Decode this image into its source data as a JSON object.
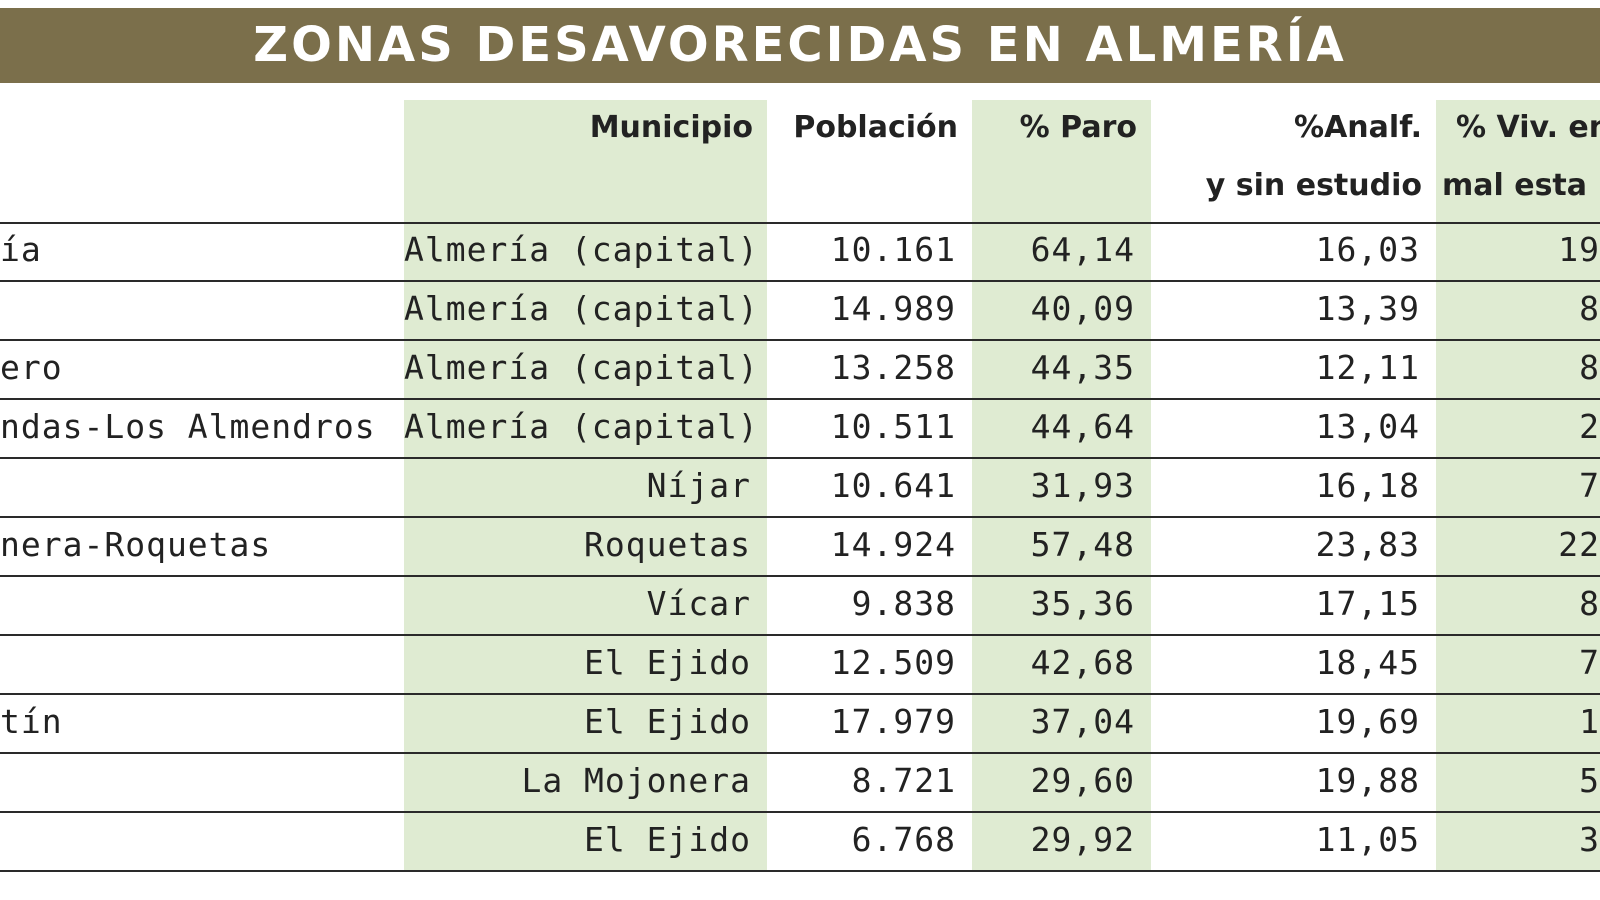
{
  "colors": {
    "title_bar": "#7b6f4b",
    "title_text": "#ffffff",
    "shade": "#dfebd2",
    "rule": "#2a2a2a",
    "text": "#222222"
  },
  "chart_data": {
    "type": "table",
    "title": "ZONAS DESAVORECIDAS EN ALMERÍA",
    "columns": [
      {
        "key": "zona",
        "label_lines": [
          "",
          ""
        ]
      },
      {
        "key": "municipio",
        "label_lines": [
          "Municipio",
          ""
        ]
      },
      {
        "key": "poblacion",
        "label_lines": [
          "Población",
          ""
        ]
      },
      {
        "key": "paro",
        "label_lines": [
          "% Paro",
          ""
        ]
      },
      {
        "key": "analf",
        "label_lines": [
          "%Analf.",
          "y sin estudio"
        ]
      },
      {
        "key": "viv",
        "label_lines": [
          "% Viv. en",
          "mal esta"
        ]
      }
    ],
    "rows": [
      {
        "zona": "ía",
        "municipio": "Almería (capital)",
        "poblacion": "10.161",
        "paro": "64,14",
        "analf": "16,03",
        "viv": "19"
      },
      {
        "zona": "",
        "municipio": "Almería (capital)",
        "poblacion": "14.989",
        "paro": "40,09",
        "analf": "13,39",
        "viv": "8"
      },
      {
        "zona": "ero",
        "municipio": "Almería (capital)",
        "poblacion": "13.258",
        "paro": "44,35",
        "analf": "12,11",
        "viv": "8"
      },
      {
        "zona": "ndas-Los Almendros",
        "municipio": "Almería (capital)",
        "poblacion": "10.511",
        "paro": "44,64",
        "analf": "13,04",
        "viv": "2"
      },
      {
        "zona": "",
        "municipio": "Níjar",
        "poblacion": "10.641",
        "paro": "31,93",
        "analf": "16,18",
        "viv": "7"
      },
      {
        "zona": "nera-Roquetas",
        "municipio": "Roquetas",
        "poblacion": "14.924",
        "paro": "57,48",
        "analf": "23,83",
        "viv": "22"
      },
      {
        "zona": "",
        "municipio": "Vícar",
        "poblacion": "9.838",
        "paro": "35,36",
        "analf": "17,15",
        "viv": "8"
      },
      {
        "zona": "",
        "municipio": "El Ejido",
        "poblacion": "12.509",
        "paro": "42,68",
        "analf": "18,45",
        "viv": "7"
      },
      {
        "zona": "tín",
        "municipio": "El Ejido",
        "poblacion": "17.979",
        "paro": "37,04",
        "analf": "19,69",
        "viv": "1"
      },
      {
        "zona": "",
        "municipio": "La Mojonera",
        "poblacion": "8.721",
        "paro": "29,60",
        "analf": "19,88",
        "viv": "5"
      },
      {
        "zona": "",
        "municipio": "El Ejido",
        "poblacion": "6.768",
        "paro": "29,92",
        "analf": "11,05",
        "viv": "3"
      }
    ]
  }
}
